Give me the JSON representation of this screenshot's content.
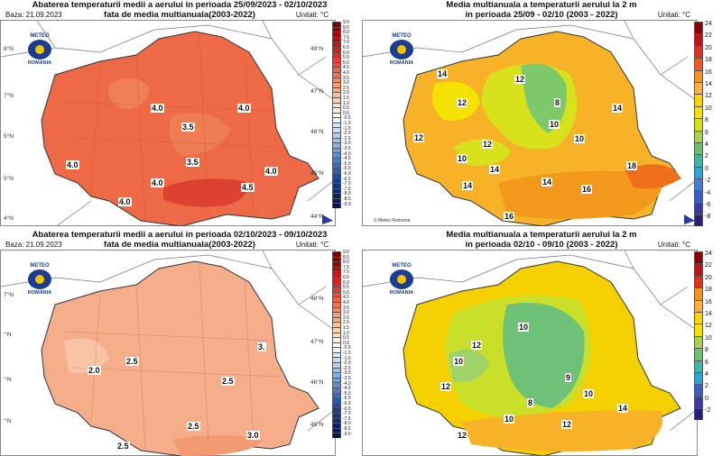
{
  "panels": [
    {
      "title": "Abaterea temperaturii medii a aerului in perioada 25/09/2023 - 02/10/2023\nfata de media multianuala(2003-2022)",
      "baza": "Baza: 21.09.2023",
      "units": "Unitati: °C",
      "logo_top": "METEO",
      "logo_bottom": "ROMANIA",
      "colorbar": [
        "9.0",
        "8.5",
        "8.0",
        "7.5",
        "7.0",
        "6.5",
        "6.0",
        "5.5",
        "5.0",
        "4.5",
        "4.0",
        "3.5",
        "3.0",
        "2.5",
        "2.0",
        "1.5",
        "1.0",
        "0.5",
        "0.0",
        "-0.5",
        "-1.0",
        "-1.5",
        "-2.0",
        "-2.5",
        "-3.0",
        "-3.5",
        "-4.0",
        "-4.5",
        "-5.0",
        "-5.5",
        "-6.0",
        "-6.5",
        "-7.0",
        "-7.5",
        "-8.0",
        "-8.5",
        "-9.0"
      ],
      "lat_labels": [
        "48°N",
        "47°N",
        "46°N",
        "45°N",
        "44°N"
      ],
      "lat_labels_left": [
        "8°N",
        "7°N",
        "5°N",
        "5°N",
        "4°N"
      ],
      "contours": [
        "4.0",
        "3.5",
        "4.0",
        "4.0",
        "3.5",
        "4.0",
        "4.0",
        "4.5",
        "4.0",
        "4.0"
      ],
      "fill": "#ee6a47"
    },
    {
      "title": "Media multianuala a temperaturii aerului la 2 m\nin perioada 25/09 - 02/10 (2003 - 2022)",
      "units": "Unitati: °C",
      "logo_top": "METEO",
      "logo_bottom": "ROMANIA",
      "colorbar": [
        "24",
        "22",
        "20",
        "18",
        "16",
        "14",
        "12",
        "10",
        "8",
        "6",
        "4",
        "2",
        "0",
        "-2",
        "-4",
        "-6",
        "-8"
      ],
      "copyright": "© Meteo Romania",
      "contours": [
        "14",
        "12",
        "12",
        "8",
        "14",
        "12",
        "10",
        "10",
        "12",
        "10",
        "14",
        "18",
        "14",
        "14",
        "16",
        "16"
      ]
    },
    {
      "title": "Abaterea temperaturii medii a aerului in perioada 02/10/2023 - 09/10/2023\nfata de media multianuala(2003-2022)",
      "baza": "Baza: 21.09.2023",
      "units": "Unitati: °C",
      "logo_top": "METEO",
      "logo_bottom": "ROMANIA",
      "colorbar": [
        "9.0",
        "8.5",
        "8.0",
        "7.5",
        "7.0",
        "6.5",
        "6.0",
        "5.5",
        "5.0",
        "4.5",
        "4.0",
        "3.5",
        "3.0",
        "2.5",
        "2.0",
        "1.5",
        "1.0",
        "0.5",
        "0.0",
        "-0.5",
        "-1.0",
        "-1.5",
        "-2.0",
        "-2.5",
        "-3.0",
        "-3.5",
        "-4.0",
        "-4.5",
        "-5.0",
        "-5.5",
        "-6.0",
        "-6.5",
        "-7.0",
        "-7.5",
        "-8.0",
        "-8.5",
        "-9.0"
      ],
      "lat_labels": [
        "48°N",
        "47°N",
        "46°N",
        "45°N"
      ],
      "lat_labels_left": [
        "7°N",
        "'°N",
        "'°N",
        "'°N"
      ],
      "contours": [
        "2.0",
        "2.5",
        "3.",
        "2.5",
        "2.5",
        "2.5",
        "3.0"
      ],
      "fill": "#f5ad8a"
    },
    {
      "title": "Media multianuala a temperaturii aerului la 2 m\nin perioada 02/10 - 09/10 (2003 - 2022)",
      "units": "Unitati: °C",
      "logo_top": "METEO",
      "logo_bottom": "ROMANIA",
      "colorbar": [
        "24",
        "22",
        "20",
        "18",
        "16",
        "14",
        "12",
        "10",
        "8",
        "6",
        "4",
        "2",
        "0",
        "-2"
      ],
      "contours": [
        "10",
        "12",
        "10",
        "12",
        "9",
        "10",
        "8",
        "10",
        "14",
        "12",
        "12",
        "10"
      ]
    }
  ],
  "colors": {
    "anomaly_bar": [
      "#7a0000",
      "#8e0000",
      "#a50000",
      "#b80a0a",
      "#c81414",
      "#d61e1e",
      "#e02a2a",
      "#e83a3a",
      "#ee4d3e",
      "#f16048",
      "#f47355",
      "#f68863",
      "#f89b73",
      "#f9ad87",
      "#fbc09c",
      "#fcd2b4",
      "#fde3cc",
      "#fef0e4",
      "#ffffff",
      "#eef4fb",
      "#dce9f7",
      "#c9dcf1",
      "#b5cfeb",
      "#a0c0e4",
      "#8bb1dd",
      "#769fd4",
      "#628ecb",
      "#4f7dc1",
      "#3d6cb7",
      "#2d5cab",
      "#1f4d9e",
      "#15408f",
      "#0f3581",
      "#0b2b72",
      "#082264",
      "#061a56",
      "#041347"
    ],
    "temp_bar": [
      "#8b0000",
      "#c0121b",
      "#e0301e",
      "#f15a24",
      "#f7941d",
      "#fbb040",
      "#ffd200",
      "#f4e300",
      "#d7e21c",
      "#a6d04f",
      "#6fbf73",
      "#3fb8a3",
      "#29a8d8",
      "#3b82d6",
      "#3f5bc7",
      "#3a3aa6",
      "#2a2078"
    ]
  }
}
